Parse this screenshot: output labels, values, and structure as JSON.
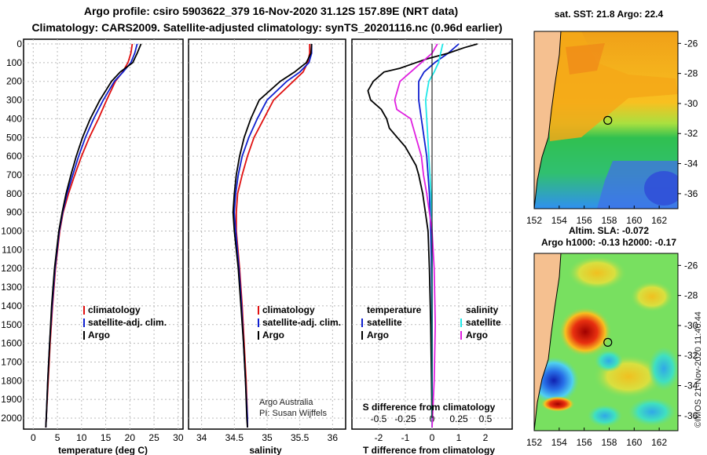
{
  "title_line1": "Argo profile: csiro 5903622_379 16-Nov-2020 31.12S 157.89E (NRT data)",
  "title_line2": "Climatology: CARS2009. Satellite-adjusted climatology: synTS_20201116.nc (0.96d earlier)",
  "map_top_title": "sat. SST: 21.8 Argo: 22.4",
  "map_bottom_title1": "Altim. SLA: -0.072",
  "map_bottom_title2": "Argo h1000: -0.13 h2000: -0.17",
  "credit_line1": "Argo Australia",
  "credit_line2": "PI: Susan Wijffels",
  "side_stamp": "©IMOS 21-Nov-2020 11:46:44",
  "colors": {
    "climatology": "#e01010",
    "satellite": "#1020d0",
    "argo": "#000000",
    "sal_satellite": "#20e8e8",
    "sal_argo": "#e020e0",
    "land": "#f5c090"
  },
  "chart_data": [
    {
      "type": "line",
      "panel": "temperature",
      "xlabel": "temperature (deg C)",
      "xlim": [
        -2,
        31
      ],
      "xticks": [
        "0",
        "5",
        "10",
        "15",
        "20",
        "25",
        "30"
      ],
      "ylim": [
        2080,
        0
      ],
      "yticks": [
        "0",
        "100",
        "200",
        "300",
        "400",
        "500",
        "600",
        "700",
        "800",
        "900",
        "1000",
        "1100",
        "1200",
        "1300",
        "1400",
        "1500",
        "1600",
        "1700",
        "1800",
        "1900",
        "2000"
      ],
      "legend": [
        "climatology",
        "satellite-adj. clim.",
        "Argo"
      ],
      "series": [
        {
          "name": "climatology",
          "depth": [
            0,
            50,
            100,
            150,
            200,
            300,
            400,
            500,
            600,
            700,
            800,
            900,
            1000,
            1200,
            1400,
            1600,
            1800,
            2000,
            2050
          ],
          "values": [
            20.5,
            20.2,
            19.6,
            18.5,
            17.0,
            15.2,
            13.5,
            11.6,
            10.0,
            8.6,
            7.3,
            6.2,
            5.5,
            4.6,
            4.0,
            3.5,
            3.1,
            2.7,
            2.6
          ]
        },
        {
          "name": "satellite-adj. clim.",
          "depth": [
            0,
            50,
            100,
            150,
            200,
            300,
            400,
            500,
            600,
            700,
            800,
            900,
            1000,
            1200,
            1400,
            1600,
            1800,
            2000,
            2050
          ],
          "values": [
            21.5,
            21.0,
            20.2,
            18.6,
            16.8,
            14.5,
            12.5,
            10.8,
            9.4,
            8.2,
            7.0,
            6.1,
            5.4,
            4.5,
            3.9,
            3.4,
            3.0,
            2.7,
            2.6
          ]
        },
        {
          "name": "Argo",
          "depth": [
            0,
            50,
            100,
            150,
            200,
            300,
            400,
            500,
            600,
            700,
            800,
            900,
            1000,
            1200,
            1400,
            1600,
            1800,
            2000,
            2050
          ],
          "values": [
            22.3,
            21.5,
            20.6,
            18.0,
            16.2,
            13.8,
            11.8,
            10.2,
            8.9,
            7.8,
            6.8,
            6.0,
            5.3,
            4.4,
            3.8,
            3.4,
            3.0,
            2.7,
            2.6
          ]
        }
      ]
    },
    {
      "type": "line",
      "panel": "salinity",
      "xlabel": "salinity",
      "xlim": [
        33.8,
        36.2
      ],
      "xticks": [
        "34",
        "34.5",
        "35",
        "35.5",
        "36"
      ],
      "ylim": [
        2080,
        0
      ],
      "legend": [
        "climatology",
        "satellite-adj. clim.",
        "Argo"
      ],
      "series": [
        {
          "name": "climatology",
          "depth": [
            0,
            50,
            100,
            150,
            200,
            300,
            400,
            500,
            600,
            700,
            800,
            900,
            1000,
            1200,
            1400,
            1600,
            1800,
            2000,
            2050
          ],
          "values": [
            35.65,
            35.65,
            35.62,
            35.55,
            35.4,
            35.1,
            34.95,
            34.8,
            34.7,
            34.62,
            34.55,
            34.53,
            34.53,
            34.58,
            34.62,
            34.65,
            34.68,
            34.7,
            34.7
          ]
        },
        {
          "name": "satellite-adj. clim.",
          "depth": [
            0,
            50,
            100,
            150,
            200,
            300,
            400,
            500,
            600,
            700,
            800,
            900,
            1000,
            1200,
            1400,
            1600,
            1800,
            2000,
            2050
          ],
          "values": [
            35.68,
            35.68,
            35.64,
            35.5,
            35.3,
            35.0,
            34.85,
            34.72,
            34.62,
            34.56,
            34.52,
            34.5,
            34.52,
            34.57,
            34.61,
            34.64,
            34.67,
            34.7,
            34.7
          ]
        },
        {
          "name": "Argo",
          "depth": [
            0,
            50,
            100,
            150,
            200,
            300,
            400,
            500,
            600,
            700,
            800,
            900,
            1000,
            1200,
            1400,
            1600,
            1800,
            2000,
            2050
          ],
          "values": [
            35.68,
            35.67,
            35.6,
            35.42,
            35.2,
            34.88,
            34.75,
            34.65,
            34.58,
            34.53,
            34.5,
            34.48,
            34.5,
            34.56,
            34.6,
            34.64,
            34.67,
            34.69,
            34.7
          ]
        }
      ]
    },
    {
      "type": "line",
      "panel": "difference",
      "xlabel": "T difference from climatology",
      "xlabel2": "S difference from climatology",
      "xlim": [
        -3,
        3
      ],
      "xticks": [
        "-2",
        "-1",
        "0",
        "1",
        "2"
      ],
      "xticks2": [
        "-0.5",
        "-0.25",
        "0",
        "0.25",
        "0.5"
      ],
      "ylim": [
        2080,
        0
      ],
      "legend": [
        "temperature",
        "satellite",
        "Argo",
        "salinity",
        "satellite",
        "Argo"
      ],
      "series": [
        {
          "name": "T satellite",
          "depth": [
            0,
            50,
            100,
            150,
            200,
            300,
            400,
            500,
            600,
            700,
            800,
            1000,
            1200,
            1500,
            1800,
            2050
          ],
          "values": [
            1.0,
            0.6,
            0.1,
            -0.3,
            -0.5,
            -0.5,
            -0.4,
            -0.3,
            -0.2,
            -0.15,
            -0.1,
            -0.05,
            -0.02,
            0,
            0,
            0
          ]
        },
        {
          "name": "T Argo",
          "depth": [
            0,
            20,
            50,
            80,
            100,
            130,
            150,
            200,
            250,
            300,
            350,
            400,
            450,
            500,
            550,
            600,
            650,
            700,
            800,
            900,
            1000,
            1200,
            1500,
            1800,
            2050
          ],
          "values": [
            1.7,
            1.2,
            0.6,
            -0.2,
            -0.6,
            -1.2,
            -1.8,
            -2.2,
            -2.4,
            -2.3,
            -1.9,
            -1.7,
            -1.6,
            -1.3,
            -1.0,
            -0.8,
            -0.6,
            -0.5,
            -0.35,
            -0.25,
            -0.15,
            -0.1,
            -0.05,
            -0.02,
            0
          ]
        },
        {
          "name": "S satellite",
          "depth": [
            0,
            50,
            100,
            150,
            200,
            300,
            400,
            500,
            600,
            700,
            800,
            1000,
            1200,
            1500,
            1800,
            2050
          ],
          "values": [
            0.1,
            0.08,
            0.06,
            0.02,
            -0.03,
            -0.06,
            -0.05,
            -0.04,
            -0.03,
            -0.02,
            -0.01,
            0,
            0,
            0,
            0,
            0
          ]
        },
        {
          "name": "S Argo",
          "depth": [
            0,
            50,
            100,
            150,
            200,
            300,
            350,
            400,
            500,
            600,
            700,
            800,
            1000,
            1200,
            1500,
            1800,
            2050
          ],
          "values": [
            0.05,
            0.0,
            -0.1,
            -0.2,
            -0.3,
            -0.35,
            -0.33,
            -0.2,
            -0.15,
            -0.1,
            -0.08,
            -0.05,
            0.0,
            0.02,
            0.03,
            0.02,
            0.0
          ]
        }
      ]
    }
  ],
  "map_top": {
    "xticks": [
      "152",
      "154",
      "156",
      "158",
      "160",
      "162"
    ],
    "yticks": [
      "-26",
      "-28",
      "-30",
      "-32",
      "-34",
      "-36"
    ],
    "argo_lon": 157.89,
    "argo_lat": -31.12
  },
  "map_bottom": {
    "xticks": [
      "152",
      "154",
      "156",
      "158",
      "160",
      "162"
    ],
    "yticks": [
      "-26",
      "-28",
      "-30",
      "-32",
      "-34",
      "-36"
    ],
    "argo_lon": 157.89,
    "argo_lat": -31.12
  }
}
